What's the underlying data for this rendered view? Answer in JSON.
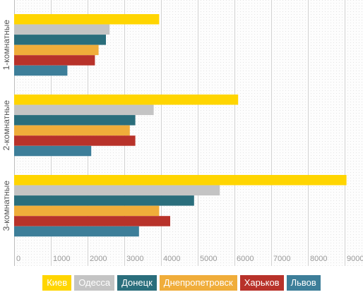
{
  "chart_data": {
    "type": "bar",
    "orientation": "horizontal",
    "categories": [
      "1-комнатные",
      "2-комнатные",
      "3-комнатные"
    ],
    "series": [
      {
        "name": "Киев",
        "color": "#ffd500",
        "values": [
          3950,
          6100,
          9050
        ]
      },
      {
        "name": "Одесса",
        "color": "#c4c4c4",
        "values": [
          2600,
          3800,
          5600
        ]
      },
      {
        "name": "Донецк",
        "color": "#2a6e7c",
        "values": [
          2500,
          3300,
          4900
        ]
      },
      {
        "name": "Днепропетровск",
        "color": "#f0ad3a",
        "values": [
          2300,
          3150,
          3950
        ]
      },
      {
        "name": "Харьков",
        "color": "#b8322a",
        "values": [
          2200,
          3300,
          4250
        ]
      },
      {
        "name": "Львов",
        "color": "#3d7e99",
        "values": [
          1450,
          2100,
          3400
        ]
      }
    ],
    "xlim": [
      0,
      9500
    ],
    "xticks": [
      0,
      1000,
      2000,
      3000,
      4000,
      5000,
      6000,
      7000,
      8000,
      9000
    ],
    "grid": true,
    "legend_position": "bottom"
  }
}
